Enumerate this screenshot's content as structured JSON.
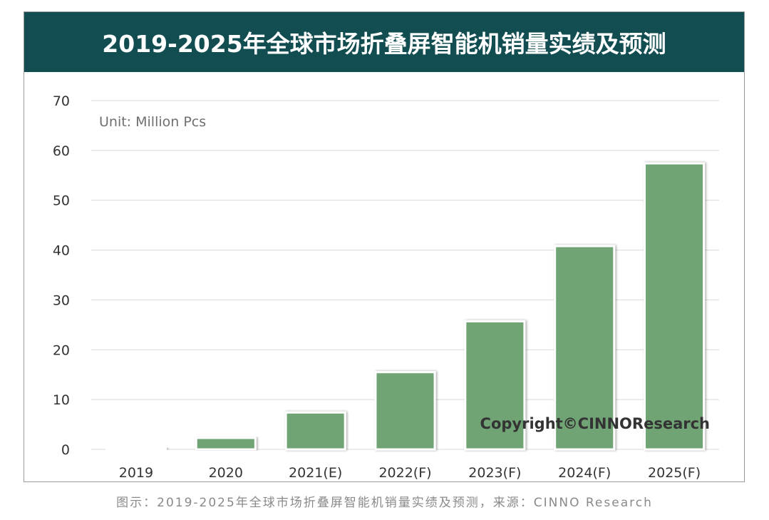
{
  "chart_data": {
    "type": "bar",
    "title": "2019-2025年全球市场折叠屏智能机销量实绩及预测",
    "unit_label": "Unit: Million Pcs",
    "xlabel": "",
    "ylabel": "",
    "categories": [
      "2019",
      "2020",
      "2021(E)",
      "2022(F)",
      "2023(F)",
      "2024(F)",
      "2025(F)"
    ],
    "values": [
      0.3,
      2.3,
      7.4,
      15.5,
      25.7,
      40.8,
      57.4
    ],
    "yticks": [
      0,
      10,
      20,
      30,
      40,
      50,
      60,
      70
    ],
    "ylim": [
      0,
      70
    ],
    "grid": true,
    "legend": "none",
    "bar_color": "#70a474",
    "watermark": "Copyright©CINNOResearch"
  },
  "caption": "图示：2019-2025年全球市场折叠屏智能机销量实绩及预测，来源：CINNO Research",
  "colors": {
    "banner": "#124d52",
    "bar": "#70a474",
    "grid": "#d9d9d9"
  }
}
